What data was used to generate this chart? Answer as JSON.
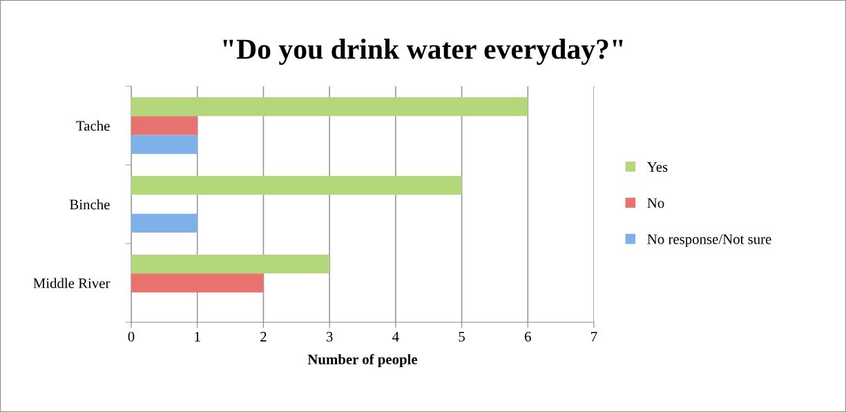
{
  "chart_data": {
    "type": "bar",
    "orientation": "horizontal",
    "title": "\"Do you drink water everyday?\"",
    "xlabel": "Number of people",
    "categories": [
      "Tache",
      "Binche",
      "Middle River"
    ],
    "series": [
      {
        "name": "Yes",
        "color": "#b5d77c",
        "values": [
          6,
          5,
          3
        ]
      },
      {
        "name": "No",
        "color": "#e8736e",
        "values": [
          1,
          0,
          2
        ]
      },
      {
        "name": "No response/Not sure",
        "color": "#7eb1ea",
        "values": [
          1,
          1,
          0
        ]
      }
    ],
    "xlim": [
      0,
      7
    ],
    "xticks": [
      0,
      1,
      2,
      3,
      4,
      5,
      6,
      7
    ],
    "grid": "x",
    "legend": "right"
  }
}
